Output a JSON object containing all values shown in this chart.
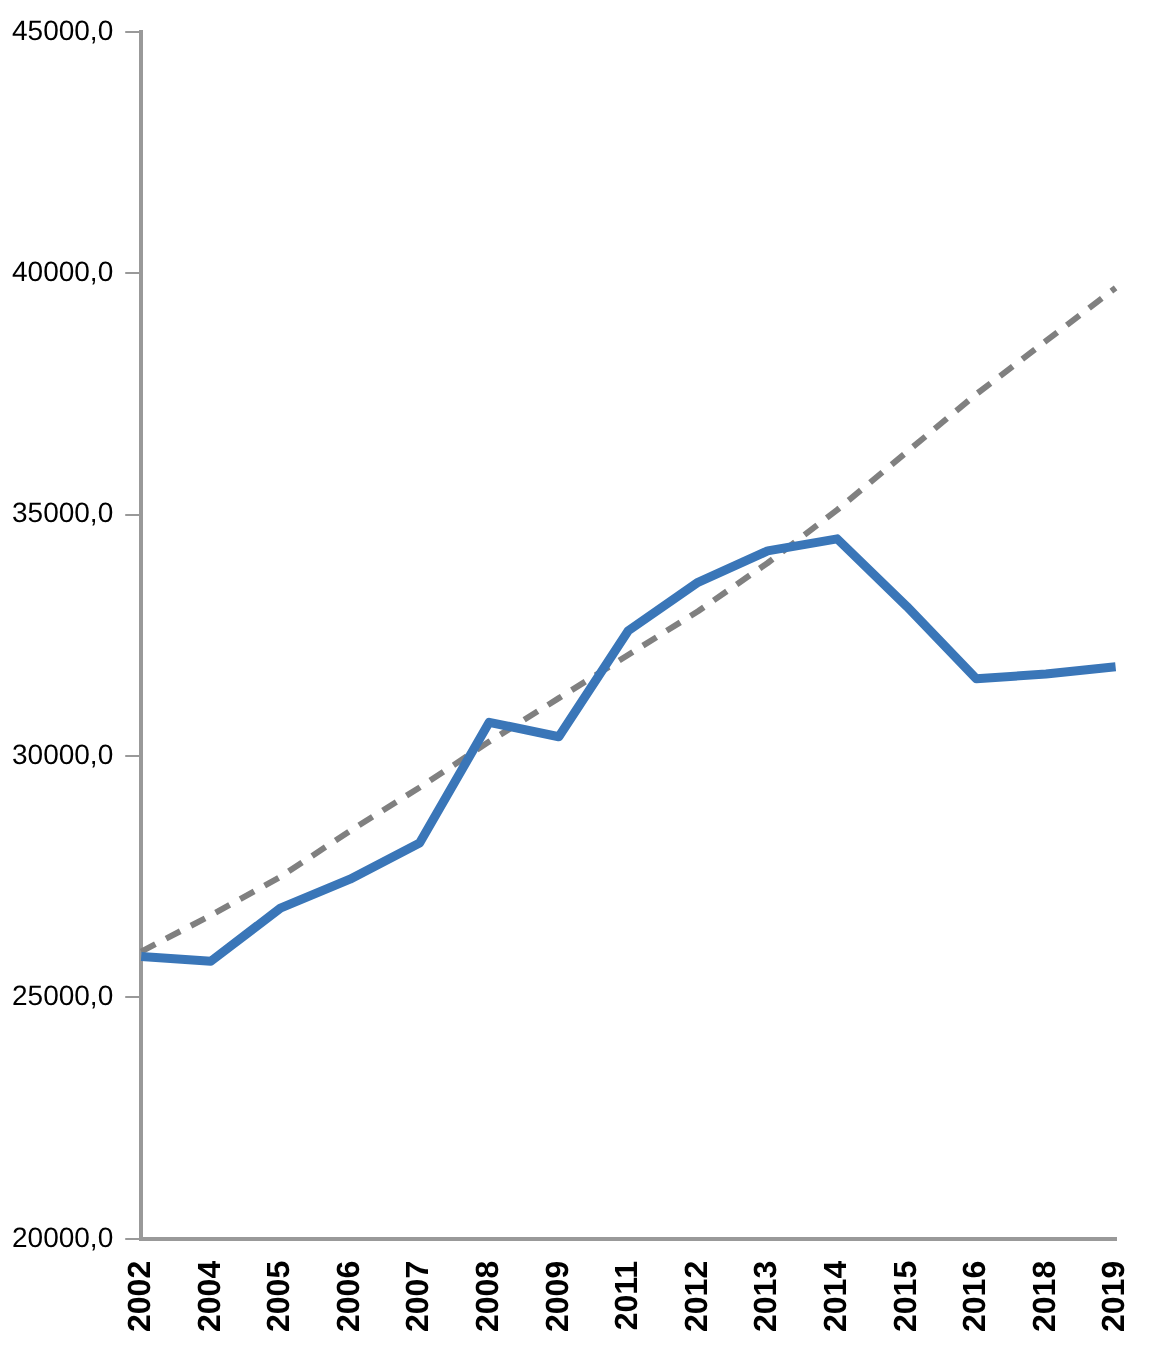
{
  "chart_data": {
    "type": "line",
    "categories": [
      "2002",
      "2004",
      "2005",
      "2006",
      "2007",
      "2008",
      "2009",
      "2011",
      "2012",
      "2013",
      "2014",
      "2015",
      "2016",
      "2018",
      "2019"
    ],
    "series": [
      {
        "color": "#3a76b8",
        "line_style": "solid",
        "values": [
          25850,
          25750,
          26850,
          27450,
          28200,
          30700,
          30400,
          32600,
          33600,
          34250,
          34500,
          33100,
          31600,
          31700,
          31850
        ]
      },
      {
        "color": "#808080",
        "line_style": "dashed",
        "values": [
          25950,
          26700,
          27500,
          28450,
          29350,
          30300,
          31200,
          32100,
          33000,
          34000,
          35100,
          36300,
          37500,
          38600,
          39700
        ]
      }
    ],
    "ylim": [
      20000,
      45000
    ],
    "yticks": [
      {
        "value": 20000,
        "label": "20000,0"
      },
      {
        "value": 25000,
        "label": "25000,0"
      },
      {
        "value": 30000,
        "label": "30000,0"
      },
      {
        "value": 35000,
        "label": "35000,0"
      },
      {
        "value": 40000,
        "label": "40000,0"
      },
      {
        "value": 45000,
        "label": "45000,0"
      }
    ],
    "grid": false,
    "legend": false,
    "marker": "none"
  }
}
